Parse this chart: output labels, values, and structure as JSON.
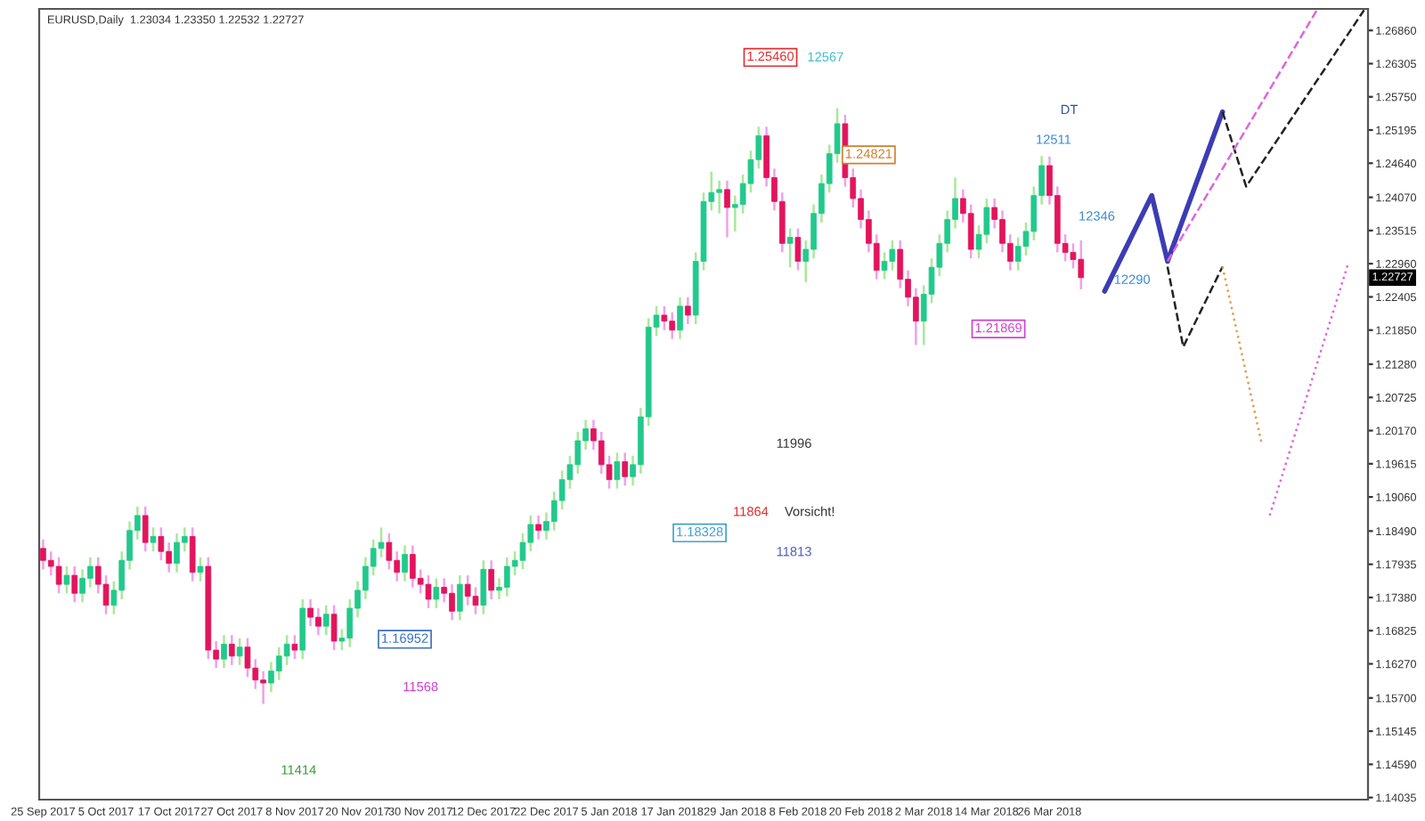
{
  "chart_data": {
    "type": "candlestick",
    "title": "EURUSD,Daily  1.23034 1.23350 1.22532 1.22727",
    "categories": [
      "25 Sep 2017",
      null,
      null,
      null,
      null,
      null,
      null,
      null,
      "5 Oct 2017",
      null,
      null,
      null,
      null,
      null,
      null,
      null,
      "17 Oct 2017",
      null,
      null,
      null,
      null,
      null,
      null,
      null,
      "27 Oct 2017",
      null,
      null,
      null,
      null,
      null,
      null,
      null,
      "8 Nov 2017",
      null,
      null,
      null,
      null,
      null,
      null,
      null,
      "20 Nov 2017",
      null,
      null,
      null,
      null,
      null,
      null,
      null,
      "30 Nov 2017",
      null,
      null,
      null,
      null,
      null,
      null,
      null,
      "12 Dec 2017",
      null,
      null,
      null,
      null,
      null,
      null,
      null,
      "22 Dec 2017",
      null,
      null,
      null,
      null,
      null,
      null,
      null,
      "5 Jan 2018",
      null,
      null,
      null,
      null,
      null,
      null,
      null,
      "17 Jan 2018",
      null,
      null,
      null,
      null,
      null,
      null,
      null,
      "29 Jan 2018",
      null,
      null,
      null,
      null,
      null,
      null,
      null,
      "8 Feb 2018",
      null,
      null,
      null,
      null,
      null,
      null,
      null,
      "20 Feb 2018",
      null,
      null,
      null,
      null,
      null,
      null,
      null,
      "2 Mar 2018",
      null,
      null,
      null,
      null,
      null,
      null,
      null,
      "14 Mar 2018",
      null,
      null,
      null,
      null,
      null,
      null,
      null,
      "26 Mar 2018",
      null,
      null,
      null,
      null,
      null,
      null,
      null,
      null,
      null,
      null,
      null,
      null,
      null,
      null,
      null,
      null,
      null,
      null,
      null,
      null,
      null,
      null,
      null,
      null,
      null,
      null,
      null,
      null,
      null,
      null,
      null,
      null,
      null,
      null,
      null,
      null,
      null,
      null,
      null,
      null
    ],
    "ohlc": [
      [
        1.182,
        1.1835,
        1.1785,
        1.18
      ],
      [
        1.18,
        1.1815,
        1.1775,
        1.179
      ],
      [
        1.179,
        1.1805,
        1.1745,
        1.176
      ],
      [
        1.176,
        1.179,
        1.1745,
        1.1775
      ],
      [
        1.1775,
        1.179,
        1.173,
        1.1745
      ],
      [
        1.1745,
        1.1785,
        1.173,
        1.177
      ],
      [
        1.177,
        1.1805,
        1.1755,
        1.179
      ],
      [
        1.179,
        1.1805,
        1.1745,
        1.176
      ],
      [
        1.176,
        1.1775,
        1.171,
        1.1725
      ],
      [
        1.1725,
        1.1765,
        1.171,
        1.175
      ],
      [
        1.175,
        1.1815,
        1.1735,
        1.18
      ],
      [
        1.18,
        1.1865,
        1.1785,
        1.185
      ],
      [
        1.185,
        1.189,
        1.1835,
        1.1875
      ],
      [
        1.1875,
        1.189,
        1.1815,
        1.183
      ],
      [
        1.183,
        1.1855,
        1.1815,
        1.184
      ],
      [
        1.184,
        1.1855,
        1.18,
        1.1815
      ],
      [
        1.1815,
        1.183,
        1.178,
        1.1795
      ],
      [
        1.1795,
        1.1845,
        1.178,
        1.183
      ],
      [
        1.183,
        1.1855,
        1.1815,
        1.184
      ],
      [
        1.184,
        1.1855,
        1.1765,
        1.178
      ],
      [
        1.178,
        1.1805,
        1.1765,
        1.179
      ],
      [
        1.179,
        1.1805,
        1.1635,
        1.165
      ],
      [
        1.165,
        1.1665,
        1.162,
        1.1635
      ],
      [
        1.1635,
        1.1675,
        1.162,
        1.166
      ],
      [
        1.166,
        1.1675,
        1.1625,
        1.164
      ],
      [
        1.164,
        1.167,
        1.1625,
        1.1655
      ],
      [
        1.1655,
        1.167,
        1.1605,
        1.162
      ],
      [
        1.162,
        1.1635,
        1.1585,
        1.16
      ],
      [
        1.16,
        1.1615,
        1.156,
        1.1595
      ],
      [
        1.1595,
        1.163,
        1.158,
        1.1615
      ],
      [
        1.1615,
        1.1655,
        1.16,
        1.164
      ],
      [
        1.164,
        1.1675,
        1.1625,
        1.166
      ],
      [
        1.166,
        1.1675,
        1.1635,
        1.165
      ],
      [
        1.165,
        1.1735,
        1.1635,
        1.172
      ],
      [
        1.172,
        1.1735,
        1.169,
        1.1705
      ],
      [
        1.1705,
        1.172,
        1.1675,
        1.169
      ],
      [
        1.169,
        1.1725,
        1.1675,
        1.171
      ],
      [
        1.171,
        1.1725,
        1.165,
        1.1665
      ],
      [
        1.1665,
        1.1685,
        1.165,
        1.167
      ],
      [
        1.167,
        1.1735,
        1.1655,
        1.172
      ],
      [
        1.172,
        1.1765,
        1.1705,
        1.175
      ],
      [
        1.175,
        1.1805,
        1.1735,
        1.179
      ],
      [
        1.179,
        1.1835,
        1.1775,
        1.182
      ],
      [
        1.182,
        1.1855,
        1.1805,
        1.183
      ],
      [
        1.183,
        1.1845,
        1.1785,
        1.18
      ],
      [
        1.18,
        1.1815,
        1.1765,
        1.178
      ],
      [
        1.178,
        1.1825,
        1.1765,
        1.181
      ],
      [
        1.181,
        1.1825,
        1.1755,
        1.177
      ],
      [
        1.177,
        1.1785,
        1.1745,
        1.176
      ],
      [
        1.176,
        1.1775,
        1.172,
        1.1735
      ],
      [
        1.1735,
        1.177,
        1.172,
        1.1755
      ],
      [
        1.1755,
        1.177,
        1.173,
        1.1745
      ],
      [
        1.1745,
        1.176,
        1.17,
        1.1715
      ],
      [
        1.1715,
        1.1775,
        1.17,
        1.176
      ],
      [
        1.176,
        1.1775,
        1.1725,
        1.174
      ],
      [
        1.174,
        1.1755,
        1.171,
        1.1725
      ],
      [
        1.1725,
        1.18,
        1.171,
        1.1785
      ],
      [
        1.1785,
        1.18,
        1.1735,
        1.175
      ],
      [
        1.175,
        1.177,
        1.1735,
        1.1755
      ],
      [
        1.1755,
        1.1805,
        1.174,
        1.179
      ],
      [
        1.179,
        1.1815,
        1.1775,
        1.18
      ],
      [
        1.18,
        1.1845,
        1.1785,
        1.183
      ],
      [
        1.183,
        1.1875,
        1.1815,
        1.186
      ],
      [
        1.186,
        1.1875,
        1.1835,
        1.185
      ],
      [
        1.185,
        1.188,
        1.1835,
        1.1865
      ],
      [
        1.1865,
        1.1915,
        1.185,
        1.19
      ],
      [
        1.19,
        1.195,
        1.1885,
        1.1935
      ],
      [
        1.1935,
        1.1975,
        1.192,
        1.196
      ],
      [
        1.196,
        1.2015,
        1.1945,
        1.2
      ],
      [
        1.2,
        1.2035,
        1.1985,
        1.202
      ],
      [
        1.202,
        1.2035,
        1.1985,
        1.2
      ],
      [
        1.2,
        1.2015,
        1.1945,
        1.196
      ],
      [
        1.196,
        1.1975,
        1.192,
        1.1935
      ],
      [
        1.1935,
        1.198,
        1.192,
        1.1965
      ],
      [
        1.1965,
        1.198,
        1.1925,
        1.194
      ],
      [
        1.194,
        1.1975,
        1.1925,
        1.196
      ],
      [
        1.196,
        1.2055,
        1.1945,
        1.204
      ],
      [
        1.204,
        1.2205,
        1.2025,
        1.219
      ],
      [
        1.219,
        1.2225,
        1.2175,
        1.221
      ],
      [
        1.221,
        1.2225,
        1.2185,
        1.22
      ],
      [
        1.22,
        1.2215,
        1.217,
        1.2185
      ],
      [
        1.2185,
        1.224,
        1.217,
        1.2225
      ],
      [
        1.2225,
        1.224,
        1.2195,
        1.221
      ],
      [
        1.221,
        1.2315,
        1.2195,
        1.23
      ],
      [
        1.23,
        1.2415,
        1.2285,
        1.24
      ],
      [
        1.24,
        1.245,
        1.2385,
        1.2415
      ],
      [
        1.2415,
        1.2435,
        1.238,
        1.242
      ],
      [
        1.242,
        1.2435,
        1.234,
        1.239
      ],
      [
        1.239,
        1.241,
        1.235,
        1.2395
      ],
      [
        1.2395,
        1.2445,
        1.238,
        1.243
      ],
      [
        1.243,
        1.2485,
        1.2415,
        1.247
      ],
      [
        1.247,
        1.2525,
        1.2455,
        1.251
      ],
      [
        1.251,
        1.2525,
        1.2425,
        1.244
      ],
      [
        1.244,
        1.2455,
        1.2385,
        1.24
      ],
      [
        1.24,
        1.2415,
        1.2315,
        1.233
      ],
      [
        1.233,
        1.2355,
        1.229,
        1.234
      ],
      [
        1.234,
        1.2355,
        1.2285,
        1.23
      ],
      [
        1.23,
        1.2335,
        1.2265,
        1.232
      ],
      [
        1.232,
        1.2395,
        1.2305,
        1.238
      ],
      [
        1.238,
        1.2445,
        1.2365,
        1.243
      ],
      [
        1.243,
        1.2495,
        1.2415,
        1.248
      ],
      [
        1.248,
        1.2556,
        1.2465,
        1.253
      ],
      [
        1.253,
        1.2545,
        1.2425,
        1.244
      ],
      [
        1.244,
        1.2455,
        1.239,
        1.2405
      ],
      [
        1.2405,
        1.242,
        1.2355,
        1.237
      ],
      [
        1.237,
        1.2385,
        1.2315,
        1.233
      ],
      [
        1.233,
        1.2345,
        1.227,
        1.2285
      ],
      [
        1.2285,
        1.2315,
        1.227,
        1.23
      ],
      [
        1.23,
        1.2335,
        1.2285,
        1.232
      ],
      [
        1.232,
        1.2335,
        1.2255,
        1.227
      ],
      [
        1.227,
        1.2285,
        1.2225,
        1.224
      ],
      [
        1.224,
        1.2255,
        1.216,
        1.22
      ],
      [
        1.22,
        1.226,
        1.216,
        1.2245
      ],
      [
        1.2245,
        1.2305,
        1.223,
        1.229
      ],
      [
        1.229,
        1.2345,
        1.2275,
        1.233
      ],
      [
        1.233,
        1.2385,
        1.2315,
        1.237
      ],
      [
        1.237,
        1.244,
        1.2355,
        1.2405
      ],
      [
        1.2405,
        1.242,
        1.2365,
        1.238
      ],
      [
        1.238,
        1.2395,
        1.2305,
        1.232
      ],
      [
        1.232,
        1.236,
        1.2305,
        1.2345
      ],
      [
        1.2345,
        1.2405,
        1.233,
        1.239
      ],
      [
        1.239,
        1.2405,
        1.2355,
        1.237
      ],
      [
        1.237,
        1.2385,
        1.2315,
        1.233
      ],
      [
        1.233,
        1.2345,
        1.2285,
        1.23
      ],
      [
        1.23,
        1.234,
        1.2285,
        1.2325
      ],
      [
        1.2325,
        1.2365,
        1.231,
        1.235
      ],
      [
        1.235,
        1.2425,
        1.2335,
        1.241
      ],
      [
        1.241,
        1.2476,
        1.2395,
        1.246
      ],
      [
        1.246,
        1.2475,
        1.2395,
        1.241
      ],
      [
        1.241,
        1.2425,
        1.2315,
        1.233
      ],
      [
        1.233,
        1.2345,
        1.23,
        1.2315
      ],
      [
        1.2315,
        1.233,
        1.2288,
        1.2303
      ],
      [
        1.23034,
        1.2335,
        1.22532,
        1.22727
      ],
      null,
      null,
      null,
      null,
      null,
      null,
      null,
      null,
      null,
      null,
      null,
      null,
      null,
      null,
      null,
      null,
      null,
      null,
      null,
      null,
      null,
      null,
      null,
      null,
      null,
      null,
      null,
      null,
      null,
      null,
      null,
      null,
      null,
      null,
      null,
      null
    ],
    "series": [
      {
        "type": "line",
        "color": "#3c3cb4",
        "line_style": "solid",
        "values": [
          null,
          null,
          null,
          null,
          null,
          null,
          null,
          null,
          null,
          null,
          null,
          null,
          null,
          null,
          null,
          null,
          null,
          null,
          null,
          null,
          null,
          null,
          null,
          null,
          null,
          null,
          null,
          null,
          null,
          null,
          null,
          null,
          null,
          null,
          null,
          null,
          null,
          null,
          null,
          null,
          null,
          null,
          null,
          null,
          null,
          null,
          null,
          null,
          null,
          null,
          null,
          null,
          null,
          null,
          null,
          null,
          null,
          null,
          null,
          null,
          null,
          null,
          null,
          null,
          null,
          null,
          null,
          null,
          null,
          null,
          null,
          null,
          null,
          null,
          null,
          null,
          null,
          null,
          null,
          null,
          null,
          null,
          null,
          null,
          null,
          null,
          null,
          null,
          null,
          null,
          null,
          null,
          null,
          null,
          null,
          null,
          null,
          null,
          null,
          null,
          null,
          null,
          null,
          null,
          null,
          null,
          null,
          null,
          null,
          null,
          null,
          null,
          null,
          null,
          null,
          null,
          null,
          null,
          null,
          null,
          null,
          null,
          null,
          null,
          null,
          null,
          null,
          null,
          null,
          null,
          null,
          null,
          null,
          null,
          null,
          1.225,
          null,
          null,
          null,
          null,
          null,
          1.241,
          null,
          1.23,
          null,
          null,
          null,
          null,
          null,
          null,
          1.255,
          null,
          null,
          null,
          null,
          null,
          null,
          null,
          null,
          null,
          null,
          null,
          null,
          null,
          null,
          null,
          null,
          null,
          null
        ]
      },
      {
        "type": "line",
        "color": "#222222",
        "line_style": "dashed",
        "values": [
          null,
          null,
          null,
          null,
          null,
          null,
          null,
          null,
          null,
          null,
          null,
          null,
          null,
          null,
          null,
          null,
          null,
          null,
          null,
          null,
          null,
          null,
          null,
          null,
          null,
          null,
          null,
          null,
          null,
          null,
          null,
          null,
          null,
          null,
          null,
          null,
          null,
          null,
          null,
          null,
          null,
          null,
          null,
          null,
          null,
          null,
          null,
          null,
          null,
          null,
          null,
          null,
          null,
          null,
          null,
          null,
          null,
          null,
          null,
          null,
          null,
          null,
          null,
          null,
          null,
          null,
          null,
          null,
          null,
          null,
          null,
          null,
          null,
          null,
          null,
          null,
          null,
          null,
          null,
          null,
          null,
          null,
          null,
          null,
          null,
          null,
          null,
          null,
          null,
          null,
          null,
          null,
          null,
          null,
          null,
          null,
          null,
          null,
          null,
          null,
          null,
          null,
          null,
          null,
          null,
          null,
          null,
          null,
          null,
          null,
          null,
          null,
          null,
          null,
          null,
          null,
          null,
          null,
          null,
          null,
          null,
          null,
          null,
          null,
          null,
          null,
          null,
          null,
          null,
          null,
          null,
          null,
          null,
          null,
          null,
          null,
          null,
          null,
          null,
          null,
          null,
          null,
          null,
          null,
          null,
          null,
          null,
          null,
          null,
          null,
          1.255,
          null,
          null,
          1.2425,
          null,
          null,
          null,
          null,
          null,
          null,
          null,
          null,
          null,
          null,
          null,
          null,
          null,
          null,
          1.272
        ]
      },
      {
        "type": "line",
        "color": "#222222",
        "line_style": "dashed",
        "values": [
          null,
          null,
          null,
          null,
          null,
          null,
          null,
          null,
          null,
          null,
          null,
          null,
          null,
          null,
          null,
          null,
          null,
          null,
          null,
          null,
          null,
          null,
          null,
          null,
          null,
          null,
          null,
          null,
          null,
          null,
          null,
          null,
          null,
          null,
          null,
          null,
          null,
          null,
          null,
          null,
          null,
          null,
          null,
          null,
          null,
          null,
          null,
          null,
          null,
          null,
          null,
          null,
          null,
          null,
          null,
          null,
          null,
          null,
          null,
          null,
          null,
          null,
          null,
          null,
          null,
          null,
          null,
          null,
          null,
          null,
          null,
          null,
          null,
          null,
          null,
          null,
          null,
          null,
          null,
          null,
          null,
          null,
          null,
          null,
          null,
          null,
          null,
          null,
          null,
          null,
          null,
          null,
          null,
          null,
          null,
          null,
          null,
          null,
          null,
          null,
          null,
          null,
          null,
          null,
          null,
          null,
          null,
          null,
          null,
          null,
          null,
          null,
          null,
          null,
          null,
          null,
          null,
          null,
          null,
          null,
          null,
          null,
          null,
          null,
          null,
          null,
          null,
          null,
          null,
          null,
          null,
          null,
          null,
          null,
          null,
          null,
          null,
          null,
          null,
          null,
          null,
          null,
          null,
          1.2291,
          null,
          1.2157,
          null,
          null,
          null,
          null,
          1.2291,
          null,
          null,
          null,
          null,
          null,
          null,
          null,
          null,
          null,
          null,
          null,
          null,
          null,
          null,
          null,
          null,
          null,
          null
        ]
      },
      {
        "type": "line",
        "color": "#dd66dd",
        "line_style": "dashed",
        "values": [
          null,
          null,
          null,
          null,
          null,
          null,
          null,
          null,
          null,
          null,
          null,
          null,
          null,
          null,
          null,
          null,
          null,
          null,
          null,
          null,
          null,
          null,
          null,
          null,
          null,
          null,
          null,
          null,
          null,
          null,
          null,
          null,
          null,
          null,
          null,
          null,
          null,
          null,
          null,
          null,
          null,
          null,
          null,
          null,
          null,
          null,
          null,
          null,
          null,
          null,
          null,
          null,
          null,
          null,
          null,
          null,
          null,
          null,
          null,
          null,
          null,
          null,
          null,
          null,
          null,
          null,
          null,
          null,
          null,
          null,
          null,
          null,
          null,
          null,
          null,
          null,
          null,
          null,
          null,
          null,
          null,
          null,
          null,
          null,
          null,
          null,
          null,
          null,
          null,
          null,
          null,
          null,
          null,
          null,
          null,
          null,
          null,
          null,
          null,
          null,
          null,
          null,
          null,
          null,
          null,
          null,
          null,
          null,
          null,
          null,
          null,
          null,
          null,
          null,
          null,
          null,
          null,
          null,
          null,
          null,
          null,
          null,
          null,
          null,
          null,
          null,
          null,
          null,
          null,
          null,
          null,
          null,
          null,
          null,
          null,
          null,
          null,
          null,
          null,
          null,
          null,
          null,
          null,
          1.23,
          null,
          null,
          null,
          null,
          null,
          null,
          null,
          null,
          null,
          null,
          null,
          null,
          null,
          null,
          null,
          null,
          null,
          null,
          1.272,
          null,
          null,
          null,
          null,
          null,
          null
        ]
      },
      {
        "type": "line",
        "color": "#e0a050",
        "line_style": "dotted",
        "values": [
          null,
          null,
          null,
          null,
          null,
          null,
          null,
          null,
          null,
          null,
          null,
          null,
          null,
          null,
          null,
          null,
          null,
          null,
          null,
          null,
          null,
          null,
          null,
          null,
          null,
          null,
          null,
          null,
          null,
          null,
          null,
          null,
          null,
          null,
          null,
          null,
          null,
          null,
          null,
          null,
          null,
          null,
          null,
          null,
          null,
          null,
          null,
          null,
          null,
          null,
          null,
          null,
          null,
          null,
          null,
          null,
          null,
          null,
          null,
          null,
          null,
          null,
          null,
          null,
          null,
          null,
          null,
          null,
          null,
          null,
          null,
          null,
          null,
          null,
          null,
          null,
          null,
          null,
          null,
          null,
          null,
          null,
          null,
          null,
          null,
          null,
          null,
          null,
          null,
          null,
          null,
          null,
          null,
          null,
          null,
          null,
          null,
          null,
          null,
          null,
          null,
          null,
          null,
          null,
          null,
          null,
          null,
          null,
          null,
          null,
          null,
          null,
          null,
          null,
          null,
          null,
          null,
          null,
          null,
          null,
          null,
          null,
          null,
          null,
          null,
          null,
          null,
          null,
          null,
          null,
          null,
          null,
          null,
          null,
          null,
          null,
          null,
          null,
          null,
          null,
          null,
          null,
          null,
          null,
          null,
          null,
          null,
          null,
          null,
          null,
          1.2291,
          null,
          null,
          null,
          null,
          1.1994,
          null,
          null,
          null,
          null,
          null,
          null,
          null,
          null,
          null,
          null,
          null,
          null,
          null
        ]
      },
      {
        "type": "line",
        "color": "#dd66dd",
        "line_style": "dotted",
        "values": [
          null,
          null,
          null,
          null,
          null,
          null,
          null,
          null,
          null,
          null,
          null,
          null,
          null,
          null,
          null,
          null,
          null,
          null,
          null,
          null,
          null,
          null,
          null,
          null,
          null,
          null,
          null,
          null,
          null,
          null,
          null,
          null,
          null,
          null,
          null,
          null,
          null,
          null,
          null,
          null,
          null,
          null,
          null,
          null,
          null,
          null,
          null,
          null,
          null,
          null,
          null,
          null,
          null,
          null,
          null,
          null,
          null,
          null,
          null,
          null,
          null,
          null,
          null,
          null,
          null,
          null,
          null,
          null,
          null,
          null,
          null,
          null,
          null,
          null,
          null,
          null,
          null,
          null,
          null,
          null,
          null,
          null,
          null,
          null,
          null,
          null,
          null,
          null,
          null,
          null,
          null,
          null,
          null,
          null,
          null,
          null,
          null,
          null,
          null,
          null,
          null,
          null,
          null,
          null,
          null,
          null,
          null,
          null,
          null,
          null,
          null,
          null,
          null,
          null,
          null,
          null,
          null,
          null,
          null,
          null,
          null,
          null,
          null,
          null,
          null,
          null,
          null,
          null,
          null,
          null,
          null,
          null,
          null,
          null,
          null,
          null,
          null,
          null,
          null,
          null,
          null,
          null,
          null,
          null,
          null,
          null,
          null,
          null,
          null,
          null,
          null,
          null,
          null,
          null,
          null,
          null,
          1.1875,
          null,
          null,
          null,
          null,
          null,
          null,
          null,
          null,
          null,
          1.2297,
          null,
          null
        ]
      }
    ],
    "ylim": [
      1.14,
      1.2722
    ],
    "yticks": [
      {
        "value": 1.2686,
        "label": "1.26860"
      },
      {
        "value": 1.26305,
        "label": "1.26305"
      },
      {
        "value": 1.2575,
        "label": "1.25750"
      },
      {
        "value": 1.25195,
        "label": "1.25195"
      },
      {
        "value": 1.2464,
        "label": "1.24640"
      },
      {
        "value": 1.2407,
        "label": "1.24070"
      },
      {
        "value": 1.23515,
        "label": "1.23515"
      },
      {
        "value": 1.2296,
        "label": "1.22960"
      },
      {
        "value": 1.22405,
        "label": "1.22405"
      },
      {
        "value": 1.2185,
        "label": "1.21850"
      },
      {
        "value": 1.2128,
        "label": "1.21280"
      },
      {
        "value": 1.20725,
        "label": "1.20725"
      },
      {
        "value": 1.2017,
        "label": "1.20170"
      },
      {
        "value": 1.19615,
        "label": "1.19615"
      },
      {
        "value": 1.1906,
        "label": "1.19060"
      },
      {
        "value": 1.1849,
        "label": "1.18490"
      },
      {
        "value": 1.17935,
        "label": "1.17935"
      },
      {
        "value": 1.1738,
        "label": "1.17380"
      },
      {
        "value": 1.16825,
        "label": "1.16825"
      },
      {
        "value": 1.1627,
        "label": "1.16270"
      },
      {
        "value": 1.157,
        "label": "1.15700"
      },
      {
        "value": 1.15145,
        "label": "1.15145"
      },
      {
        "value": 1.1459,
        "label": "1.14590"
      },
      {
        "value": 1.14035,
        "label": "1.14035"
      }
    ],
    "annotations": [
      "1.22727",
      "1.25460",
      "12567",
      "1.24821",
      "DT",
      "12511",
      "12346",
      "12290",
      "1.21869",
      "11996",
      "11864",
      "Vorsicht!",
      "1.18328",
      "11813",
      "1.16952",
      "11568",
      "11414"
    ],
    "grid": false,
    "legend": false
  }
}
